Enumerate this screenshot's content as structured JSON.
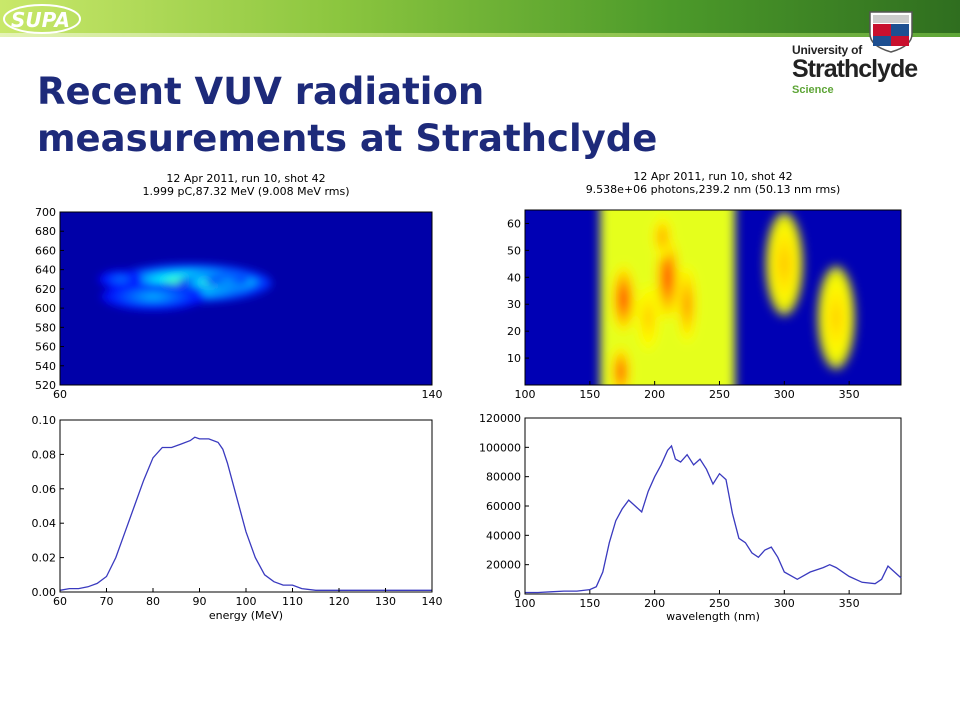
{
  "header": {
    "logo_text": "SUPA",
    "title_line1": "Recent VUV radiation",
    "title_line2": "measurements at Strathclyde",
    "university_of": "University of",
    "university_name": "Strathclyde",
    "university_faculty": "Science"
  },
  "colors": {
    "title": "#1d2a7a",
    "line": "#3a3abf",
    "heatmap_low": "#0000a8",
    "heatmap_high": "#a80000"
  },
  "chart_data": [
    {
      "type": "heatmap",
      "title": "12 Apr 2011, run 10, shot 42",
      "subtitle": "1.999 pC,87.32 MeV (9.008 MeV rms)",
      "xlim": [
        60,
        140
      ],
      "ylim": [
        520,
        700
      ],
      "xticks": [
        "60",
        "140"
      ],
      "yticks": [
        "520",
        "540",
        "560",
        "580",
        "600",
        "620",
        "640",
        "660",
        "680",
        "700"
      ],
      "colormap": "jet",
      "blobs": [
        {
          "x": 88,
          "y": 626,
          "sx": 11,
          "sy": 13,
          "v": 0.42
        },
        {
          "x": 95,
          "y": 627,
          "sx": 6,
          "sy": 6,
          "v": 0.5
        },
        {
          "x": 96,
          "y": 628,
          "sx": 3,
          "sy": 3.5,
          "v": 0.22
        },
        {
          "x": 80,
          "y": 612,
          "sx": 7,
          "sy": 9,
          "v": 0.2
        },
        {
          "x": 73,
          "y": 630,
          "sx": 3,
          "sy": 6,
          "v": 0.14
        }
      ]
    },
    {
      "type": "heatmap",
      "title": "12 Apr 2011, run 10, shot 42",
      "subtitle": "9.538e+06 photons,239.2 nm (50.13 nm rms)",
      "xlim": [
        100,
        390
      ],
      "ylim": [
        0,
        65
      ],
      "xticks": [
        "100",
        "150",
        "200",
        "250",
        "300",
        "350"
      ],
      "yticks": [
        "10",
        "20",
        "30",
        "40",
        "50",
        "60"
      ],
      "colormap": "jet",
      "band": {
        "x_start": 158,
        "x_end": 262,
        "level": 0.6
      },
      "blobs": [
        {
          "x": 176,
          "y": 32,
          "sx": 6,
          "sy": 8,
          "v": 0.22
        },
        {
          "x": 210,
          "y": 40,
          "sx": 6,
          "sy": 10,
          "v": 0.22
        },
        {
          "x": 206,
          "y": 55,
          "sx": 5,
          "sy": 5,
          "v": 0.12
        },
        {
          "x": 225,
          "y": 30,
          "sx": 5,
          "sy": 9,
          "v": 0.14
        },
        {
          "x": 174,
          "y": 5,
          "sx": 5,
          "sy": 6,
          "v": 0.2
        },
        {
          "x": 195,
          "y": 25,
          "sx": 6,
          "sy": 8,
          "v": 0.08
        },
        {
          "x": 300,
          "y": 45,
          "sx": 9,
          "sy": 12,
          "v": 0.08
        },
        {
          "x": 340,
          "y": 25,
          "sx": 9,
          "sy": 12,
          "v": 0.07
        }
      ]
    },
    {
      "type": "line",
      "xlabel": "energy (MeV)",
      "xlim": [
        60,
        140
      ],
      "ylim": [
        0,
        0.1
      ],
      "xticks": [
        "60",
        "70",
        "80",
        "90",
        "100",
        "110",
        "120",
        "130",
        "140"
      ],
      "yticks": [
        "0.00",
        "0.02",
        "0.04",
        "0.06",
        "0.08",
        "0.10"
      ],
      "series": [
        {
          "x": [
            60,
            62,
            64,
            66,
            68,
            70,
            72,
            74,
            76,
            78,
            80,
            82,
            84,
            86,
            88,
            89,
            90,
            92,
            94,
            95,
            96,
            98,
            100,
            102,
            104,
            106,
            108,
            110,
            112,
            115,
            120,
            125,
            130,
            135,
            140
          ],
          "y": [
            0.001,
            0.002,
            0.002,
            0.003,
            0.005,
            0.009,
            0.02,
            0.035,
            0.05,
            0.065,
            0.078,
            0.084,
            0.084,
            0.086,
            0.088,
            0.09,
            0.089,
            0.089,
            0.087,
            0.083,
            0.075,
            0.055,
            0.035,
            0.02,
            0.01,
            0.006,
            0.004,
            0.004,
            0.002,
            0.001,
            0.001,
            0.001,
            0.001,
            0.001,
            0.001
          ]
        }
      ]
    },
    {
      "type": "line",
      "xlabel": "wavelength (nm)",
      "xlim": [
        100,
        390
      ],
      "ylim": [
        0,
        120000
      ],
      "xticks": [
        "100",
        "150",
        "200",
        "250",
        "300",
        "350"
      ],
      "yticks": [
        "0",
        "20000",
        "40000",
        "60000",
        "80000",
        "100000",
        "120000"
      ],
      "series": [
        {
          "x": [
            100,
            110,
            120,
            130,
            140,
            150,
            155,
            160,
            165,
            170,
            175,
            180,
            185,
            190,
            195,
            200,
            205,
            210,
            213,
            216,
            220,
            225,
            230,
            235,
            240,
            245,
            250,
            255,
            260,
            265,
            270,
            275,
            280,
            285,
            290,
            295,
            300,
            310,
            320,
            330,
            335,
            340,
            350,
            360,
            370,
            375,
            380,
            385,
            390
          ],
          "y": [
            1000,
            1000,
            1500,
            2000,
            2000,
            3000,
            5000,
            15000,
            35000,
            50000,
            58000,
            64000,
            60000,
            56000,
            70000,
            80000,
            88000,
            98000,
            101000,
            92000,
            90000,
            95000,
            88000,
            92000,
            85000,
            75000,
            82000,
            78000,
            55000,
            38000,
            35000,
            28000,
            25000,
            30000,
            32000,
            25000,
            15000,
            10000,
            15000,
            18000,
            20000,
            18000,
            12000,
            8000,
            7000,
            10000,
            19000,
            15000,
            11000
          ]
        }
      ]
    }
  ]
}
